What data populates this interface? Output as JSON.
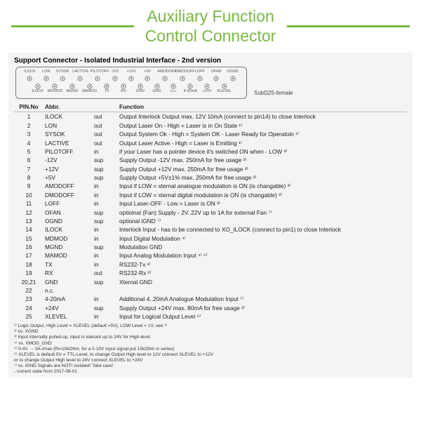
{
  "colors": {
    "accent": "#7ab842",
    "panel_bg": "#f4f4f4",
    "text": "#222222",
    "line": "#bbbbbb"
  },
  "title": {
    "line1": "Auxiliary Function",
    "line2": "Control Connector"
  },
  "header": "Support Connector - Isolated Industrial Interface - 2nd version",
  "connector_label": "SubD25-female",
  "pins_top": [
    "ILOCK",
    "LON",
    "SYSOK",
    "LACTIVE",
    "PILOTOFF",
    "-12V",
    "+12V",
    "+5V",
    "AMODOFF",
    "DMODOFF",
    "LOFF",
    "OFAN",
    "OGND"
  ],
  "pins_bot": [
    "ILOCK",
    "MDMOD",
    "MGND",
    "MAMOD",
    "TX",
    "RX",
    "GND",
    "GND",
    "n.c.",
    "4-20mA",
    "+24V",
    "XLEVEL"
  ],
  "table": {
    "headers": [
      "PIN.No",
      "Abbr.",
      "",
      "Function"
    ],
    "rows": [
      [
        "1",
        "ILOCK",
        "out",
        "Output Interlock Output max. 12V 10mA (connect to pin14) to close Interlock"
      ],
      [
        "2",
        "LON",
        "out",
        "Output Laser On - High = Laser is in On State ¹⁾"
      ],
      [
        "3",
        "SYSOK",
        "out",
        "Output System Ok - High = System OK - Laser Ready for Operatoin ¹⁾"
      ],
      [
        "4",
        "LACTIVE",
        "out",
        "Output Laser Active - High = Laser is Emitting ¹⁾"
      ],
      [
        "5",
        "PILOTOFF",
        "in",
        "if your Laser has a pointer device it's switched ON when - LOW ³⁾"
      ],
      [
        "6",
        "-12V",
        "sup",
        "Supply Output -12V max. 250mA for free usage ²⁾"
      ],
      [
        "7",
        "+12V",
        "sup",
        "Supply Output +12V max. 250mA for free usage ²⁾"
      ],
      [
        "8",
        "+5V",
        "sup",
        "Supply Output +5V±1% max. 250mA for free usage ²⁾"
      ],
      [
        "9",
        "AMODOFF",
        "in",
        "Input if LOW = xternal analogue modulation is ON (is changable) ³⁾"
      ],
      [
        "10",
        "DMODOFF",
        "in",
        "Input if LOW = xternal digital modulation is ON (is changable) ³⁾"
      ],
      [
        "11",
        "LOFF",
        "in",
        "Input Laser-OFF - Low = Laser is ON ³⁾"
      ],
      [
        "12",
        "OFAN",
        "sup",
        "optioinal (Fan) Supply - 2V..22V up to 1A for external Fan ⁷⁾"
      ],
      [
        "13",
        "OGND",
        "sup",
        "optional iGND ⁷⁾"
      ],
      [
        "14",
        "ILOCK",
        "in",
        "Interlock Input - has to be connected to XO_ILOCK (connect to pin1) to close Interlock"
      ],
      [
        "15",
        "MDMOD",
        "in",
        "Input Digital Modulation ⁴⁾"
      ],
      [
        "16",
        "MGND",
        "sup",
        "Modulation GND"
      ],
      [
        "17",
        "MAMOD",
        "in",
        "Input Analog Modulation Input ⁴⁾ ⁵⁾"
      ],
      [
        "18",
        "TX",
        "in",
        "RS232-Tx ²⁾"
      ],
      [
        "19",
        "RX",
        "out",
        "RS232-Rx ²⁾"
      ],
      [
        "20,21",
        "GND",
        "sup",
        "Xternal GND"
      ],
      [
        "22",
        "n.c.",
        "",
        ""
      ],
      [
        "23",
        "4-20mA",
        "in",
        "Additional 4..20mA Analogue Modulation Input ⁷⁾"
      ],
      [
        "24",
        "+24V",
        "sup",
        "Supply Output +24V max. 80mA for free usage ²⁾"
      ],
      [
        "25",
        "XLEVEL",
        "in",
        "Input for Logical Output Level ⁶⁾"
      ]
    ]
  },
  "footnotes": [
    "¹⁾ Logic Output, High Level = XLEVEL (default =5V), LOW Level < 1V, see ⁶⁾",
    "²⁾ vs. XGND",
    "³⁾ Input internally pulled-up, input is tolerant up to 24V for High-level",
    "⁴⁾ vs. XMOD_GND",
    "⁵⁾ 0-4V → 0A-Imax (Ri=10kOhm, for a 0-10V input signal put 15kOhm in series)",
    "⁶⁾ XLEVEL is default 5V = TTL-Level, to change Output High level to 12V connect XLEVEL to +12V",
    "   or to change Output High level to 24V connect XLEVEL to +24V",
    "⁷⁾ vs. iGND Signals are NOT! isolated! Take care!",
    "- current state from 2017-08-01"
  ]
}
